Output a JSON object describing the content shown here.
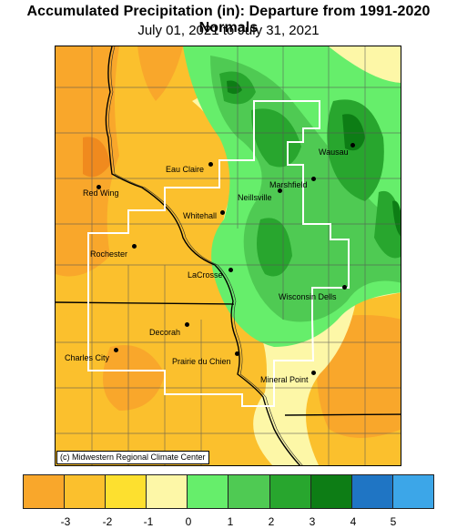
{
  "title": "Accumulated Precipitation (in): Departure from 1991-2020 Normals",
  "subtitle": "July 01, 2021 to July 31, 2021",
  "credit": "(c) Midwestern Regional Climate Center",
  "colors": {
    "background": "#ffffff",
    "bins": [
      "#f9a72b",
      "#fbc02d",
      "#fde02f",
      "#fdf7a7",
      "#66ee6b",
      "#4fca53",
      "#28a62e",
      "#0d7d15",
      "#1f75c4",
      "#3ca6e8"
    ]
  },
  "legend": {
    "tick_labels": [
      "-3",
      "-2",
      "-1",
      "0",
      "1",
      "2",
      "3",
      "4",
      "5"
    ]
  },
  "cities": [
    {
      "name": "Eau Claire"
    },
    {
      "name": "Red Wing"
    },
    {
      "name": "Wausau"
    },
    {
      "name": "Marshfield"
    },
    {
      "name": "Neillsville"
    },
    {
      "name": "Whitehall"
    },
    {
      "name": "Rochester"
    },
    {
      "name": "LaCrosse"
    },
    {
      "name": "Wisconsin Dells"
    },
    {
      "name": "Decorah"
    },
    {
      "name": "Charles City"
    },
    {
      "name": "Prairie du Chien"
    },
    {
      "name": "Mineral Point"
    }
  ]
}
